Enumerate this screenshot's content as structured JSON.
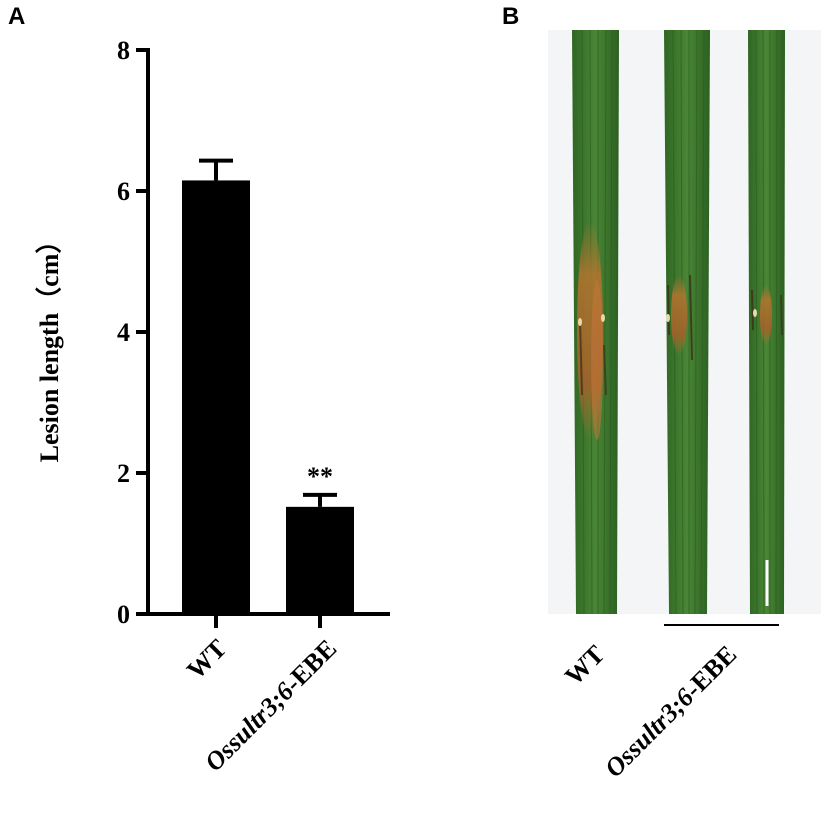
{
  "panels": {
    "a_label": "A",
    "b_label": "B"
  },
  "chart_data": {
    "type": "bar",
    "title": "",
    "xlabel": "",
    "ylabel": "Lesion length（cm）",
    "ylim": [
      0,
      8
    ],
    "yticks": [
      "0",
      "2",
      "4",
      "6",
      "8"
    ],
    "categories": [
      {
        "prefix": "",
        "italic": "",
        "suffix": "WT"
      },
      {
        "prefix": "",
        "italic": "Ossultr3;6",
        "suffix": "-EBE"
      }
    ],
    "values": [
      6.15,
      1.52
    ],
    "errors": [
      0.28,
      0.17
    ],
    "annotations": [
      "",
      "**"
    ],
    "bar_color": "#000000",
    "grid": false
  },
  "photo": {
    "leaf_color": "#3f7a2e",
    "lesion_color": "#b5742f",
    "categories": [
      {
        "prefix": "",
        "italic": "",
        "suffix": "WT"
      },
      {
        "prefix": "",
        "italic": "Ossultr3;6",
        "suffix": "-EBE"
      }
    ]
  }
}
